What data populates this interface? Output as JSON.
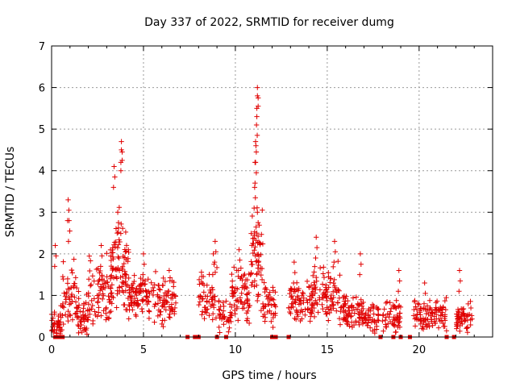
{
  "chart_data": {
    "type": "scatter",
    "title": "Day 337 of 2022, SRMTID for receiver dumg",
    "xlabel": "GPS time / hours",
    "ylabel": "SRMTID / TECUs",
    "xlim": [
      0,
      24
    ],
    "ylim": [
      0,
      7
    ],
    "xticks": [
      0,
      5,
      10,
      15,
      20
    ],
    "yticks": [
      0,
      1,
      2,
      3,
      4,
      5,
      6,
      7
    ],
    "grid": true,
    "marker": "+",
    "color": "#e00000",
    "series": [
      {
        "name": "SRMTID",
        "clusters": [
          {
            "x0": 0.0,
            "x1": 0.6,
            "base": 0.3,
            "spread": 0.35,
            "n": 40,
            "peaks": [
              [
                0.2,
                2.2
              ]
            ]
          },
          {
            "x0": 0.6,
            "x1": 1.5,
            "base": 1.0,
            "spread": 0.8,
            "n": 55,
            "peaks": [
              [
                0.9,
                3.3
              ],
              [
                0.95,
                2.8
              ]
            ]
          },
          {
            "x0": 1.4,
            "x1": 2.0,
            "base": 0.5,
            "spread": 0.5,
            "n": 40,
            "peaks": []
          },
          {
            "x0": 2.0,
            "x1": 3.3,
            "base": 1.1,
            "spread": 0.8,
            "n": 80,
            "peaks": [
              [
                2.7,
                2.2
              ]
            ]
          },
          {
            "x0": 3.2,
            "x1": 4.2,
            "base": 1.7,
            "spread": 1.1,
            "n": 90,
            "peaks": [
              [
                3.4,
                4.1
              ],
              [
                3.8,
                4.7
              ],
              [
                3.8,
                4.5
              ],
              [
                3.6,
                3.0
              ]
            ]
          },
          {
            "x0": 4.2,
            "x1": 5.2,
            "base": 1.0,
            "spread": 0.45,
            "n": 70,
            "peaks": [
              [
                5.0,
                2.0
              ]
            ]
          },
          {
            "x0": 5.2,
            "x1": 6.8,
            "base": 0.9,
            "spread": 0.55,
            "n": 90,
            "peaks": [
              [
                6.4,
                1.6
              ]
            ]
          },
          {
            "x0": 8.0,
            "x1": 9.0,
            "base": 0.9,
            "spread": 0.7,
            "n": 55,
            "peaks": [
              [
                8.8,
                2.0
              ],
              [
                8.9,
                2.3
              ]
            ]
          },
          {
            "x0": 9.1,
            "x1": 9.8,
            "base": 0.55,
            "spread": 0.45,
            "n": 35,
            "peaks": []
          },
          {
            "x0": 9.8,
            "x1": 10.8,
            "base": 1.0,
            "spread": 0.7,
            "n": 70,
            "peaks": [
              [
                10.2,
                2.1
              ]
            ]
          },
          {
            "x0": 10.8,
            "x1": 11.5,
            "base": 1.9,
            "spread": 1.3,
            "n": 60,
            "peaks": [
              [
                11.2,
                6.0
              ],
              [
                11.2,
                5.8
              ],
              [
                11.15,
                5.1
              ],
              [
                11.1,
                4.7
              ],
              [
                11.1,
                4.2
              ],
              [
                11.05,
                3.6
              ],
              [
                11.2,
                3.0
              ]
            ]
          },
          {
            "x0": 11.5,
            "x1": 12.2,
            "base": 0.8,
            "spread": 0.5,
            "n": 40,
            "peaks": []
          },
          {
            "x0": 12.9,
            "x1": 14.2,
            "base": 0.75,
            "spread": 0.55,
            "n": 80,
            "peaks": [
              [
                13.2,
                1.8
              ]
            ]
          },
          {
            "x0": 14.2,
            "x1": 15.7,
            "base": 1.0,
            "spread": 0.7,
            "n": 90,
            "peaks": [
              [
                14.4,
                2.4
              ],
              [
                15.4,
                2.3
              ]
            ]
          },
          {
            "x0": 15.7,
            "x1": 17.0,
            "base": 0.6,
            "spread": 0.4,
            "n": 80,
            "peaks": [
              [
                16.8,
                2.0
              ]
            ]
          },
          {
            "x0": 17.0,
            "x1": 17.8,
            "base": 0.45,
            "spread": 0.35,
            "n": 45,
            "peaks": []
          },
          {
            "x0": 18.0,
            "x1": 19.0,
            "base": 0.5,
            "spread": 0.45,
            "n": 55,
            "peaks": [
              [
                18.9,
                1.6
              ]
            ]
          },
          {
            "x0": 19.7,
            "x1": 21.5,
            "base": 0.55,
            "spread": 0.35,
            "n": 100,
            "peaks": [
              [
                20.3,
                1.3
              ]
            ]
          },
          {
            "x0": 22.0,
            "x1": 22.9,
            "base": 0.45,
            "spread": 0.35,
            "n": 55,
            "peaks": [
              [
                22.2,
                1.6
              ]
            ]
          }
        ],
        "zero_points": [
          0.2,
          0.4,
          0.6,
          7.4,
          7.8,
          8.0,
          9.0,
          9.5,
          12.0,
          12.2,
          12.9,
          17.9,
          18.6,
          19.0,
          19.5,
          21.5,
          21.9
        ]
      }
    ]
  }
}
